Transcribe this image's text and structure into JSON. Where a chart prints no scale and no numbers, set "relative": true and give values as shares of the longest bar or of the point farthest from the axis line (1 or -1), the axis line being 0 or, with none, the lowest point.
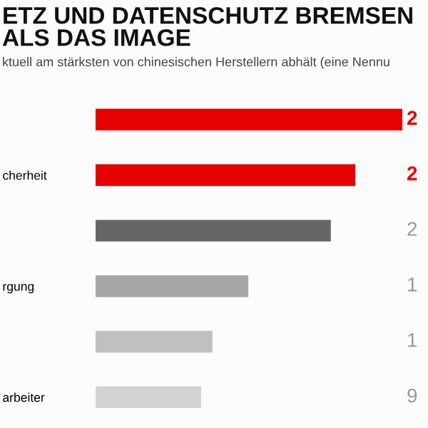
{
  "chart_data": {
    "type": "bar",
    "orientation": "horizontal",
    "relative": true,
    "title": "ETZ UND DATENSCHUTZ BREMSEN\nALS DAS IMAGE",
    "subtitle": "ktuell am stärksten von chinesischen Herstellern abhält (eine Nennu",
    "categories": [
      null,
      "cherheit",
      null,
      "rgung",
      null,
      "arbeiter"
    ],
    "values": [
      1,
      0.847,
      0.767,
      0.498,
      0.381,
      0.344
    ],
    "colors": [
      "#e60000",
      "#e60000",
      "#666666",
      "#a6a6a6",
      "#c0c0c0",
      "#d3d3d3"
    ],
    "annotations": [
      "2",
      "2",
      "2",
      "1",
      "1",
      "9"
    ]
  }
}
